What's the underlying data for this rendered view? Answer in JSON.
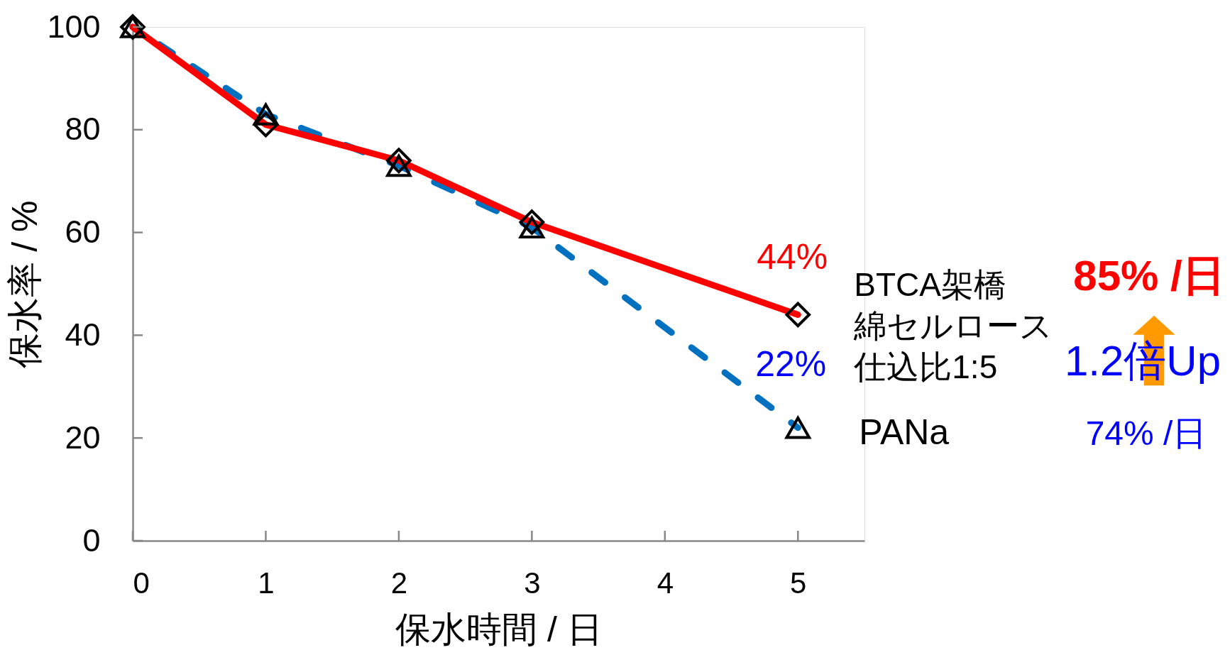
{
  "chart_data": {
    "type": "line",
    "xlabel": "保水時間 / 日",
    "ylabel": "保水率 / %",
    "x": [
      0,
      1,
      2,
      3,
      5
    ],
    "xlim": [
      0,
      5.5
    ],
    "xticks": [
      0,
      1,
      2,
      3,
      4,
      5
    ],
    "ylim": [
      0,
      100
    ],
    "yticks": [
      0,
      20,
      40,
      60,
      80,
      100
    ],
    "series": [
      {
        "name": "BTCA架橋綿セルロース仕込比1:5",
        "color": "#ff0000",
        "values": [
          100,
          81,
          74,
          62,
          44
        ],
        "marker": "diamond",
        "line_style": "solid"
      },
      {
        "name": "PANa",
        "color": "#0070c0",
        "values": [
          100,
          83,
          73,
          61,
          22
        ],
        "marker": "triangle",
        "line_style": "dashed"
      }
    ],
    "annotations": [
      {
        "text": "44%",
        "x": 5,
        "y": 44
      },
      {
        "text": "22%",
        "x": 5,
        "y": 22
      },
      "85% /日",
      "1.2倍Up",
      "74% /日"
    ]
  }
}
